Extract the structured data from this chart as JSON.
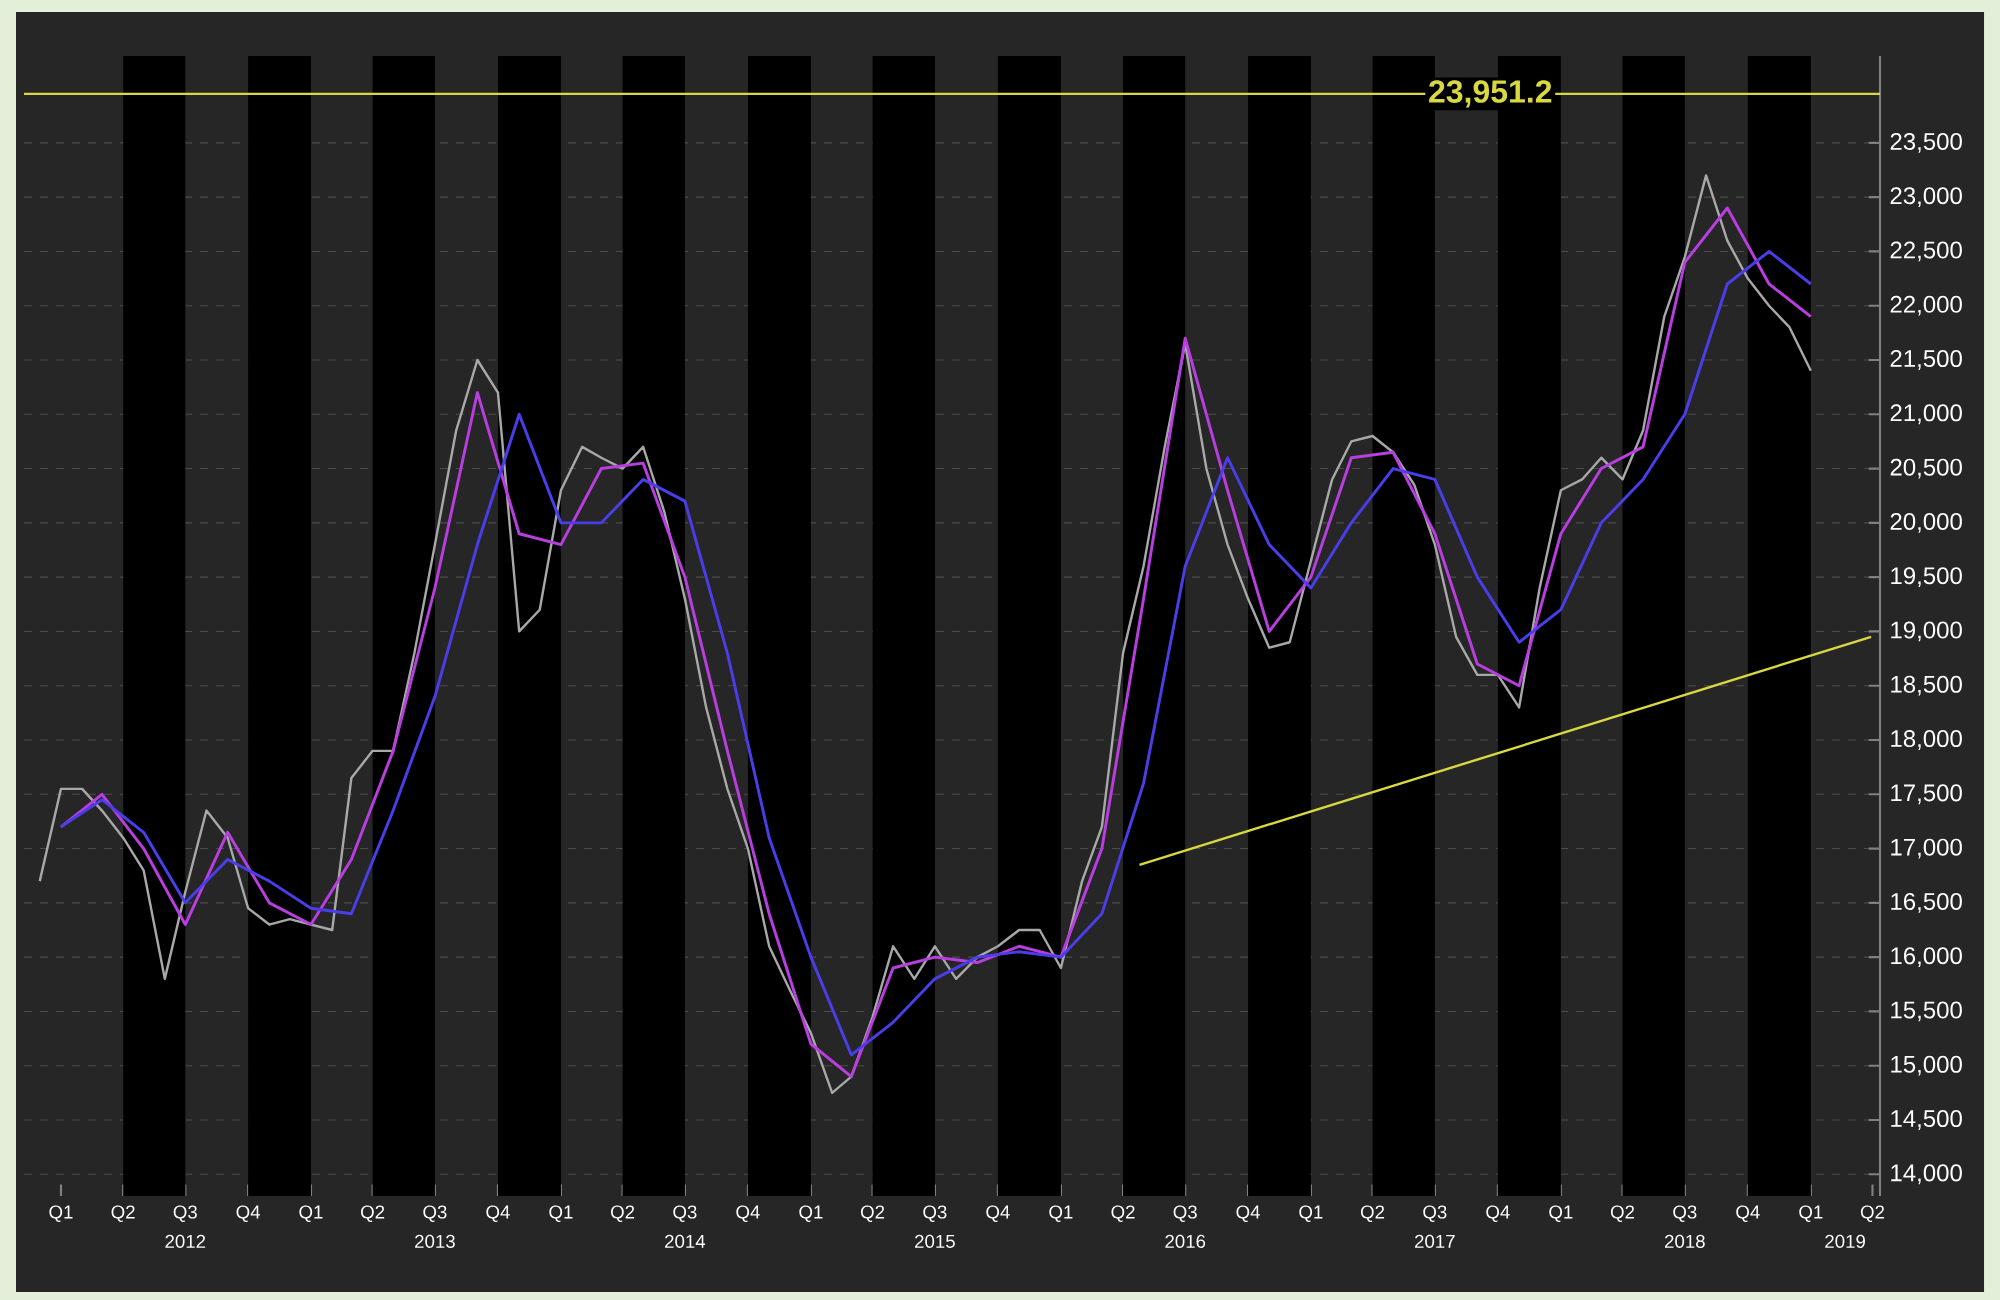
{
  "chart_data": {
    "type": "line",
    "xlim": [
      "2011-11-08",
      "2019-04-12"
    ],
    "ylim": [
      13800,
      24300
    ],
    "yticks": [
      {
        "value": 14000,
        "label": "14,000"
      },
      {
        "value": 14500,
        "label": "14,500"
      },
      {
        "value": 15000,
        "label": "15,000"
      },
      {
        "value": 15500,
        "label": "15,500"
      },
      {
        "value": 16000,
        "label": "16,000"
      },
      {
        "value": 16500,
        "label": "16,500"
      },
      {
        "value": 17000,
        "label": "17,000"
      },
      {
        "value": 17500,
        "label": "17,500"
      },
      {
        "value": 18000,
        "label": "18,000"
      },
      {
        "value": 18500,
        "label": "18,500"
      },
      {
        "value": 19000,
        "label": "19,000"
      },
      {
        "value": 19500,
        "label": "19,500"
      },
      {
        "value": 20000,
        "label": "20,000"
      },
      {
        "value": 20500,
        "label": "20,500"
      },
      {
        "value": 21000,
        "label": "21,000"
      },
      {
        "value": 21500,
        "label": "21,500"
      },
      {
        "value": 22000,
        "label": "22,000"
      },
      {
        "value": 22500,
        "label": "22,500"
      },
      {
        "value": 23000,
        "label": "23,000"
      },
      {
        "value": 23500,
        "label": "23,500"
      }
    ],
    "xticks": [
      {
        "value": "2012-01-01",
        "label": "Q1"
      },
      {
        "value": "2012-04-01",
        "label": "Q2"
      },
      {
        "value": "2012-07-01",
        "label": "Q3"
      },
      {
        "value": "2012-10-01",
        "label": "Q4"
      },
      {
        "value": "2013-01-01",
        "label": "Q1"
      },
      {
        "value": "2013-04-01",
        "label": "Q2"
      },
      {
        "value": "2013-07-01",
        "label": "Q3"
      },
      {
        "value": "2013-10-01",
        "label": "Q4"
      },
      {
        "value": "2014-01-01",
        "label": "Q1"
      },
      {
        "value": "2014-04-01",
        "label": "Q2"
      },
      {
        "value": "2014-07-01",
        "label": "Q3"
      },
      {
        "value": "2014-10-01",
        "label": "Q4"
      },
      {
        "value": "2015-01-01",
        "label": "Q1"
      },
      {
        "value": "2015-04-01",
        "label": "Q2"
      },
      {
        "value": "2015-07-01",
        "label": "Q3"
      },
      {
        "value": "2015-10-01",
        "label": "Q4"
      },
      {
        "value": "2016-01-01",
        "label": "Q1"
      },
      {
        "value": "2016-04-01",
        "label": "Q2"
      },
      {
        "value": "2016-07-01",
        "label": "Q3"
      },
      {
        "value": "2016-10-01",
        "label": "Q4"
      },
      {
        "value": "2017-01-01",
        "label": "Q1"
      },
      {
        "value": "2017-04-01",
        "label": "Q2"
      },
      {
        "value": "2017-07-01",
        "label": "Q3"
      },
      {
        "value": "2017-10-01",
        "label": "Q4"
      },
      {
        "value": "2018-01-01",
        "label": "Q1"
      },
      {
        "value": "2018-04-01",
        "label": "Q2"
      },
      {
        "value": "2018-07-01",
        "label": "Q3"
      },
      {
        "value": "2018-10-01",
        "label": "Q4"
      },
      {
        "value": "2019-01-01",
        "label": "Q1"
      },
      {
        "value": "2019-04-01",
        "label": "Q2"
      }
    ],
    "x2lim": [
      "2011-11-08",
      "2019-04-12"
    ],
    "x2ticks": [
      {
        "value": "2012-07-01",
        "label": "2012"
      },
      {
        "value": "2013-07-01",
        "label": "2013"
      },
      {
        "value": "2014-07-01",
        "label": "2014"
      },
      {
        "value": "2015-07-01",
        "label": "2015"
      },
      {
        "value": "2016-07-01",
        "label": "2016"
      },
      {
        "value": "2017-07-01",
        "label": "2017"
      },
      {
        "value": "2018-07-01",
        "label": "2018"
      },
      {
        "value": "2019-02-20",
        "label": "2019"
      }
    ],
    "grid": "y",
    "series": [
      {
        "color": "#a8a8a8",
        "x": [
          "2011-12",
          "2012-01",
          "2012-02",
          "2012-03",
          "2012-04",
          "2012-05",
          "2012-06",
          "2012-07",
          "2012-08",
          "2012-09",
          "2012-10",
          "2012-11",
          "2012-12",
          "2013-01",
          "2013-02",
          "2013-03",
          "2013-04",
          "2013-05",
          "2013-06",
          "2013-07",
          "2013-08",
          "2013-09",
          "2013-10",
          "2013-11",
          "2013-12",
          "2014-01",
          "2014-02",
          "2014-03",
          "2014-04",
          "2014-05",
          "2014-06",
          "2014-07",
          "2014-08",
          "2014-09",
          "2014-10",
          "2014-11",
          "2014-12",
          "2015-01",
          "2015-02",
          "2015-03",
          "2015-04",
          "2015-05",
          "2015-06",
          "2015-07",
          "2015-08",
          "2015-09",
          "2015-10",
          "2015-11",
          "2015-12",
          "2016-01",
          "2016-02",
          "2016-03",
          "2016-04",
          "2016-05",
          "2016-06",
          "2016-07",
          "2016-08",
          "2016-09",
          "2016-10",
          "2016-11",
          "2016-12",
          "2017-01",
          "2017-02",
          "2017-03",
          "2017-04",
          "2017-05",
          "2017-06",
          "2017-07",
          "2017-08",
          "2017-09",
          "2017-10",
          "2017-11",
          "2017-12",
          "2018-01",
          "2018-02",
          "2018-03",
          "2018-04",
          "2018-05",
          "2018-06",
          "2018-07",
          "2018-08",
          "2018-09",
          "2018-10",
          "2018-11",
          "2018-12",
          "2019-01"
        ],
        "values": [
          16700,
          17550,
          17550,
          17350,
          17100,
          16800,
          15800,
          16600,
          17350,
          17100,
          16450,
          16300,
          16350,
          16300,
          16250,
          17650,
          17900,
          17900,
          18800,
          19800,
          20850,
          21500,
          21200,
          19000,
          19200,
          20300,
          20700,
          20600,
          20500,
          20700,
          20100,
          19300,
          18300,
          17550,
          17000,
          16100,
          15700,
          15300,
          14750,
          14900,
          15450,
          16100,
          15800,
          16100,
          15800,
          16000,
          16100,
          16250,
          16250,
          15900,
          16700,
          17200,
          18800,
          19600,
          20700,
          21650,
          20500,
          19800,
          19300,
          18850,
          18900,
          19650,
          20400,
          20750,
          20800,
          20650,
          20350,
          19800,
          18950,
          18600,
          18600,
          18300,
          19400,
          20300,
          20400,
          20600,
          20400,
          20850,
          21900,
          22450,
          23200,
          22600,
          22250,
          22000,
          21800,
          21400
        ]
      },
      {
        "color": "#b83ee0",
        "x": [
          "2012-01",
          "2012-03",
          "2012-05",
          "2012-07",
          "2012-09",
          "2012-11",
          "2013-01",
          "2013-03",
          "2013-05",
          "2013-07",
          "2013-09",
          "2013-11",
          "2014-01",
          "2014-03",
          "2014-05",
          "2014-07",
          "2014-09",
          "2014-11",
          "2015-01",
          "2015-03",
          "2015-05",
          "2015-07",
          "2015-09",
          "2015-11",
          "2016-01",
          "2016-03",
          "2016-05",
          "2016-07",
          "2016-09",
          "2016-11",
          "2017-01",
          "2017-03",
          "2017-05",
          "2017-07",
          "2017-09",
          "2017-11",
          "2018-01",
          "2018-03",
          "2018-05",
          "2018-07",
          "2018-09",
          "2018-11",
          "2019-01"
        ],
        "values": [
          17200,
          17500,
          17000,
          16300,
          17150,
          16500,
          16300,
          16900,
          17900,
          19400,
          21200,
          19900,
          19800,
          20500,
          20550,
          19500,
          17900,
          16400,
          15200,
          14900,
          15900,
          16000,
          15950,
          16100,
          16000,
          17000,
          19300,
          21700,
          20300,
          19000,
          19500,
          20600,
          20650,
          19900,
          18700,
          18500,
          19900,
          20500,
          20700,
          22400,
          22900,
          22200,
          21900
        ]
      },
      {
        "color": "#4a3ee8",
        "x": [
          "2012-01",
          "2012-03",
          "2012-05",
          "2012-07",
          "2012-09",
          "2012-11",
          "2013-01",
          "2013-03",
          "2013-05",
          "2013-07",
          "2013-09",
          "2013-11",
          "2014-01",
          "2014-03",
          "2014-05",
          "2014-07",
          "2014-09",
          "2014-11",
          "2015-01",
          "2015-03",
          "2015-05",
          "2015-07",
          "2015-09",
          "2015-11",
          "2016-01",
          "2016-03",
          "2016-05",
          "2016-07",
          "2016-09",
          "2016-11",
          "2017-01",
          "2017-03",
          "2017-05",
          "2017-07",
          "2017-09",
          "2017-11",
          "2018-01",
          "2018-03",
          "2018-05",
          "2018-07",
          "2018-09",
          "2018-11",
          "2019-01"
        ],
        "values": [
          17200,
          17450,
          17150,
          16500,
          16900,
          16700,
          16450,
          16400,
          17350,
          18400,
          19800,
          21000,
          20000,
          20000,
          20400,
          20200,
          18800,
          17100,
          16000,
          15100,
          15400,
          15800,
          16000,
          16050,
          16000,
          16400,
          17600,
          19600,
          20600,
          19800,
          19400,
          20000,
          20500,
          20400,
          19500,
          18900,
          19200,
          20000,
          20400,
          21000,
          22200,
          22500,
          22200
        ]
      },
      {
        "type": "line",
        "color": "#d8d840",
        "x": [
          "2016-04-25",
          "2019-03-30"
        ],
        "values": [
          16850,
          18950
        ]
      }
    ],
    "ref_lines": [
      {
        "axis": "y",
        "value": 23951.2,
        "label": "23,951.2",
        "color": "#d8d840"
      }
    ],
    "bands": [
      {
        "axis": "x",
        "from": "2012-04-01",
        "to": "2012-07-01",
        "color": "#000000"
      },
      {
        "axis": "x",
        "from": "2012-10-01",
        "to": "2013-01-01",
        "color": "#000000"
      },
      {
        "axis": "x",
        "from": "2013-04-01",
        "to": "2013-07-01",
        "color": "#000000"
      },
      {
        "axis": "x",
        "from": "2013-10-01",
        "to": "2014-01-01",
        "color": "#000000"
      },
      {
        "axis": "x",
        "from": "2014-04-01",
        "to": "2014-07-01",
        "color": "#000000"
      },
      {
        "axis": "x",
        "from": "2014-10-01",
        "to": "2015-01-01",
        "color": "#000000"
      },
      {
        "axis": "x",
        "from": "2015-04-01",
        "to": "2015-07-01",
        "color": "#000000"
      },
      {
        "axis": "x",
        "from": "2015-10-01",
        "to": "2016-01-01",
        "color": "#000000"
      },
      {
        "axis": "x",
        "from": "2016-04-01",
        "to": "2016-07-01",
        "color": "#000000"
      },
      {
        "axis": "x",
        "from": "2016-10-01",
        "to": "2017-01-01",
        "color": "#000000"
      },
      {
        "axis": "x",
        "from": "2017-04-01",
        "to": "2017-07-01",
        "color": "#000000"
      },
      {
        "axis": "x",
        "from": "2017-10-01",
        "to": "2018-01-01",
        "color": "#000000"
      },
      {
        "axis": "x",
        "from": "2018-04-01",
        "to": "2018-07-01",
        "color": "#000000"
      },
      {
        "axis": "x",
        "from": "2018-10-01",
        "to": "2019-01-01",
        "color": "#000000"
      }
    ]
  }
}
